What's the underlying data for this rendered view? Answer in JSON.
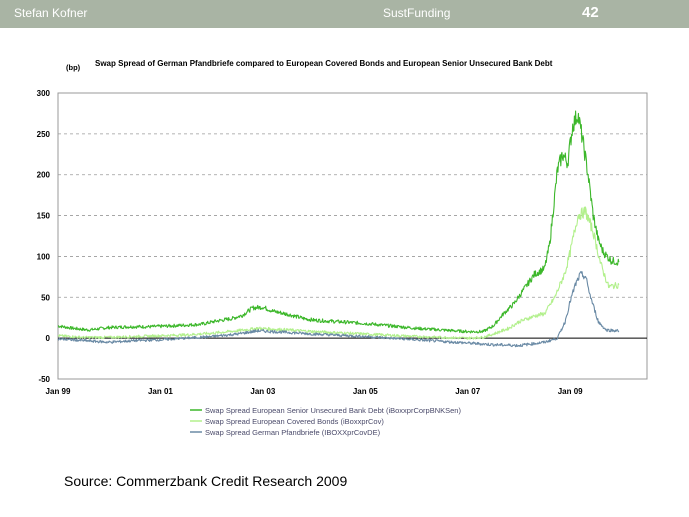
{
  "header": {
    "author": "Stefan Kofner",
    "title": "SustFunding",
    "page_number": "42"
  },
  "chart_data": {
    "type": "line",
    "title": "Swap Spread of German Pfandbriefe compared to European Covered Bonds and European Senior Unsecured Bank Debt",
    "ylabel": "(bp)",
    "ylim": [
      -50,
      300
    ],
    "yticks": [
      "300",
      "250",
      "200",
      "150",
      "100",
      "50",
      "0",
      "-50"
    ],
    "xtick_labels": [
      "Jan 99",
      "Jan 01",
      "Jan 03",
      "Jan 05",
      "Jan 07",
      "Jan 09"
    ],
    "xlim": [
      1999.0,
      2010.5
    ],
    "grid": true,
    "legend_position": "bottom",
    "series": [
      {
        "name": "Swap Spread European Senior Unsecured Bank Debt (iBoxxprCorpBNKSen)",
        "color": "#3cb72a",
        "x": [
          1999.0,
          1999.3,
          1999.6,
          2000.0,
          2000.4,
          2000.8,
          2001.2,
          2001.5,
          2001.8,
          2002.1,
          2002.4,
          2002.6,
          2002.8,
          2003.0,
          2003.2,
          2003.5,
          2003.8,
          2004.0,
          2004.5,
          2005.0,
          2005.5,
          2006.0,
          2006.5,
          2007.0,
          2007.3,
          2007.5,
          2007.7,
          2007.9,
          2008.1,
          2008.3,
          2008.5,
          2008.6,
          2008.75,
          2008.85,
          2008.95,
          2009.05,
          2009.15,
          2009.25,
          2009.35,
          2009.45,
          2009.55,
          2009.65,
          2009.8,
          2009.95
        ],
        "y": [
          15,
          12,
          10,
          13,
          14,
          14,
          15,
          16,
          17,
          21,
          24,
          28,
          37,
          38,
          33,
          29,
          24,
          22,
          20,
          18,
          15,
          12,
          10,
          8,
          8,
          15,
          30,
          42,
          60,
          78,
          85,
          115,
          205,
          225,
          215,
          260,
          275,
          240,
          200,
          150,
          120,
          105,
          95,
          93
        ]
      },
      {
        "name": "Swap Spread European Covered Bonds (iBoxxprCov)",
        "color": "#b2f08c",
        "x": [
          1999.0,
          1999.5,
          2000.0,
          2000.5,
          2001.0,
          2001.5,
          2002.0,
          2002.5,
          2002.9,
          2003.5,
          2004.0,
          2005.0,
          2006.0,
          2006.5,
          2007.0,
          2007.3,
          2007.5,
          2007.8,
          2008.0,
          2008.3,
          2008.5,
          2008.7,
          2008.9,
          2009.0,
          2009.15,
          2009.3,
          2009.45,
          2009.6,
          2009.75,
          2009.95
        ],
        "y": [
          3,
          1,
          1,
          2,
          3,
          4,
          6,
          9,
          12,
          10,
          8,
          5,
          2,
          1,
          0,
          1,
          5,
          12,
          20,
          27,
          30,
          50,
          80,
          105,
          150,
          155,
          130,
          90,
          63,
          65
        ]
      },
      {
        "name": "Swap Spread German Pfandbriefe (IBOXXprCovDE)",
        "color": "#6a8aa5",
        "x": [
          1999.0,
          1999.5,
          2000.0,
          2000.5,
          2001.0,
          2001.5,
          2002.0,
          2002.5,
          2002.9,
          2003.5,
          2004.0,
          2005.0,
          2006.0,
          2006.5,
          2007.0,
          2007.5,
          2008.0,
          2008.5,
          2008.75,
          2008.9,
          2009.0,
          2009.1,
          2009.2,
          2009.3,
          2009.4,
          2009.55,
          2009.7,
          2009.95
        ],
        "y": [
          -1,
          -3,
          -5,
          -3,
          -2,
          0,
          2,
          5,
          9,
          7,
          5,
          2,
          -2,
          -4,
          -6,
          -8,
          -9,
          -5,
          0,
          20,
          45,
          65,
          78,
          75,
          50,
          20,
          10,
          9
        ]
      }
    ]
  },
  "source": "Source: Commerzbank Credit Research 2009"
}
